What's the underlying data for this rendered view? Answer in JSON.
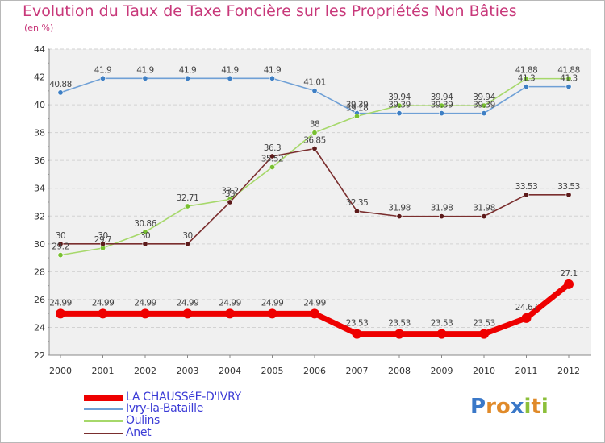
{
  "title": "Evolution du Taux de Taxe Foncière sur les Propriétés Non Bâties",
  "subtitle": "(en %)",
  "logo": {
    "letters": [
      "P",
      "r",
      "o",
      "x",
      "i",
      "t",
      "i"
    ],
    "colors": [
      "#3a78c8",
      "#e08a2a",
      "#e08a2a",
      "#3a78c8",
      "#8cbf3a",
      "#e08a2a",
      "#8cbf3a"
    ]
  },
  "chart_data": {
    "type": "line",
    "title": "Evolution du Taux de Taxe Foncière sur les Propriétés Non Bâties",
    "ylabel": "(en %)",
    "xlabel": "",
    "ylim": [
      22,
      44
    ],
    "yticks": [
      22,
      24,
      26,
      28,
      30,
      32,
      34,
      36,
      38,
      40,
      42,
      44
    ],
    "categories": [
      "2000",
      "2001",
      "2002",
      "2003",
      "2004",
      "2005",
      "2006",
      "2007",
      "2008",
      "2009",
      "2010",
      "2011",
      "2012"
    ],
    "series": [
      {
        "name": "Ivry-la-Bataille",
        "color": "#6fa0d6",
        "marker": "#3e7fc4",
        "values": [
          40.88,
          41.9,
          41.9,
          41.9,
          41.9,
          41.9,
          41.01,
          39.39,
          39.39,
          39.39,
          39.39,
          41.3,
          41.3
        ],
        "labels": [
          "40.88",
          "41.9",
          "41.9",
          "41.9",
          "41.9",
          "41.9",
          "41.01",
          "39.39",
          "39.39",
          "39.39",
          "39.39",
          "41.3",
          "41.3"
        ]
      },
      {
        "name": "Oulins",
        "color": "#a6d86a",
        "marker": "#78c030",
        "values": [
          29.2,
          29.7,
          30.86,
          32.71,
          33.2,
          35.52,
          38,
          39.18,
          39.94,
          39.94,
          39.94,
          41.88,
          41.88
        ],
        "labels": [
          "29.2",
          "29.7",
          "30.86",
          "32.71",
          "33.2",
          "35.52",
          "38",
          "39.18",
          "39.94",
          "39.94",
          "39.94",
          "41.88",
          "41.88"
        ]
      },
      {
        "name": "Anet",
        "color": "#7a2e2e",
        "marker": "#5c1a1a",
        "values": [
          30,
          30,
          30,
          30,
          33,
          36.3,
          36.85,
          32.35,
          31.98,
          31.98,
          31.98,
          33.53,
          33.53
        ],
        "labels": [
          "30",
          "30",
          "30",
          "30",
          "33",
          "36.3",
          "36.85",
          "32.35",
          "31.98",
          "31.98",
          "31.98",
          "33.53",
          "33.53"
        ]
      },
      {
        "name": "LA CHAUSSéE-D'IVRY",
        "color": "#ee0000",
        "marker": "#ee0000",
        "values": [
          24.99,
          24.99,
          24.99,
          24.99,
          24.99,
          24.99,
          24.99,
          23.53,
          23.53,
          23.53,
          23.53,
          24.67,
          27.1
        ],
        "labels": [
          "24.99",
          "24.99",
          "24.99",
          "24.99",
          "24.99",
          "24.99",
          "24.99",
          "23.53",
          "23.53",
          "23.53",
          "23.53",
          "24.67",
          "27.1"
        ]
      }
    ],
    "legend": [
      {
        "name": "LA CHAUSSéE-D'IVRY",
        "color": "#ee0000",
        "thick": true
      },
      {
        "name": "Ivry-la-Bataille",
        "color": "#6fa0d6",
        "thick": false
      },
      {
        "name": "Oulins",
        "color": "#a6d86a",
        "thick": false
      },
      {
        "name": "Anet",
        "color": "#7a2e2e",
        "thick": false
      }
    ],
    "grid": "horizontal dashed",
    "legend_position": "bottom-left"
  }
}
